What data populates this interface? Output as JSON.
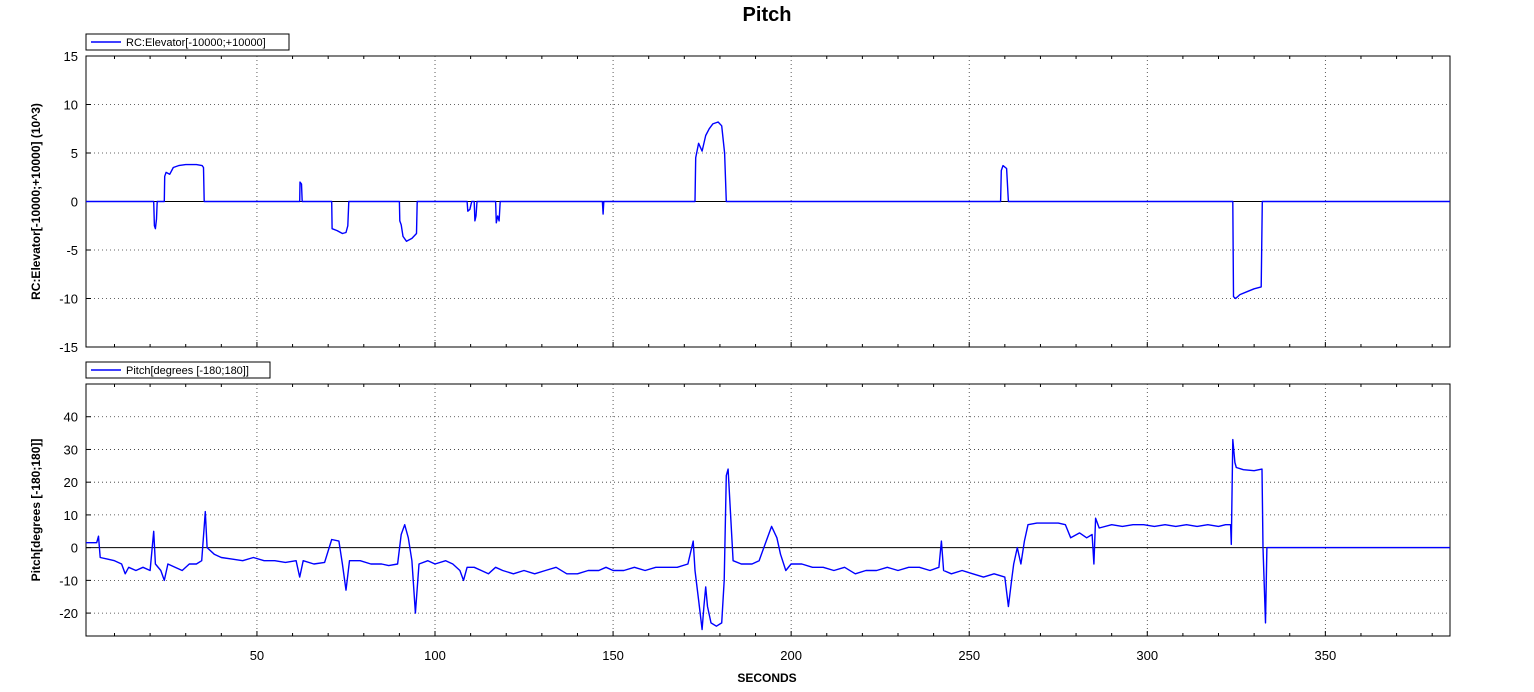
{
  "chart_data": {
    "type": "line",
    "title": "Pitch",
    "xlabel": "SECONDS",
    "xlim": [
      2,
      385
    ],
    "x_ticks": [
      50,
      100,
      150,
      200,
      250,
      300,
      350
    ],
    "panels": [
      {
        "ylabel": "RC:Elevator[-10000;+10000] (10^3)",
        "ylim": [
          -15,
          15
        ],
        "y_ticks": [
          -15,
          -10,
          -5,
          0,
          5,
          10,
          15
        ],
        "grid": true,
        "legend": "top-left",
        "series": [
          {
            "name": "RC:Elevator[-10000;+10000]",
            "color": "#0000ff",
            "points": [
              [
                2,
                0
              ],
              [
                21.0,
                0
              ],
              [
                21.2,
                -2.5
              ],
              [
                21.5,
                -2.8
              ],
              [
                21.8,
                -1.8
              ],
              [
                22.0,
                0
              ],
              [
                24.0,
                0
              ],
              [
                24.1,
                2.6
              ],
              [
                24.5,
                3.0
              ],
              [
                25.5,
                2.8
              ],
              [
                26.5,
                3.5
              ],
              [
                28,
                3.7
              ],
              [
                30,
                3.8
              ],
              [
                33,
                3.8
              ],
              [
                34.6,
                3.7
              ],
              [
                35.0,
                3.5
              ],
              [
                35.2,
                0
              ],
              [
                62.0,
                0
              ],
              [
                62.1,
                2.0
              ],
              [
                62.5,
                1.8
              ],
              [
                62.7,
                0
              ],
              [
                71.0,
                0
              ],
              [
                71.1,
                -2.8
              ],
              [
                72.5,
                -3.0
              ],
              [
                74.0,
                -3.3
              ],
              [
                75.0,
                -3.2
              ],
              [
                75.5,
                -2.5
              ],
              [
                75.8,
                0
              ],
              [
                90.0,
                0
              ],
              [
                90.1,
                -2.0
              ],
              [
                90.5,
                -2.4
              ],
              [
                91.0,
                -3.6
              ],
              [
                92.0,
                -4.1
              ],
              [
                93.5,
                -3.8
              ],
              [
                94.8,
                -3.3
              ],
              [
                95.0,
                0
              ],
              [
                109.0,
                0
              ],
              [
                109.2,
                -1.0
              ],
              [
                109.8,
                -0.8
              ],
              [
                110.3,
                0
              ],
              [
                111.0,
                0
              ],
              [
                111.2,
                -2.0
              ],
              [
                111.5,
                -1.5
              ],
              [
                111.8,
                0
              ],
              [
                117.0,
                0
              ],
              [
                117.2,
                -2.2
              ],
              [
                117.6,
                -1.5
              ],
              [
                118.0,
                -2.0
              ],
              [
                118.3,
                0
              ],
              [
                147.0,
                0
              ],
              [
                147.2,
                -1.3
              ],
              [
                147.4,
                0
              ],
              [
                173.0,
                0
              ],
              [
                173.2,
                4.5
              ],
              [
                174.0,
                6.0
              ],
              [
                175.0,
                5.2
              ],
              [
                176.0,
                6.8
              ],
              [
                177.0,
                7.5
              ],
              [
                178.0,
                8.0
              ],
              [
                179.5,
                8.2
              ],
              [
                180.5,
                7.8
              ],
              [
                181.3,
                5.0
              ],
              [
                181.8,
                0
              ],
              [
                258.8,
                0
              ],
              [
                259.0,
                3.2
              ],
              [
                259.5,
                3.7
              ],
              [
                260.5,
                3.4
              ],
              [
                261.0,
                0
              ],
              [
                324.0,
                0
              ],
              [
                324.2,
                -9.8
              ],
              [
                324.8,
                -10.0
              ],
              [
                326.0,
                -9.6
              ],
              [
                328,
                -9.3
              ],
              [
                330,
                -9.0
              ],
              [
                332,
                -8.8
              ],
              [
                332.3,
                0
              ],
              [
                385,
                0
              ]
            ]
          }
        ]
      },
      {
        "ylabel": "Pitch[degrees [-180;180]]",
        "ylim": [
          -27,
          50
        ],
        "y_ticks": [
          -20,
          -10,
          0,
          10,
          20,
          30,
          40
        ],
        "grid": true,
        "legend": "top-left",
        "series": [
          {
            "name": "Pitch[degrees [-180;180]]",
            "color": "#0000ff",
            "points": [
              [
                2,
                1.5
              ],
              [
                5,
                1.5
              ],
              [
                5.5,
                3.5
              ],
              [
                6,
                -3
              ],
              [
                8,
                -3.5
              ],
              [
                10,
                -4
              ],
              [
                12,
                -5
              ],
              [
                13,
                -8
              ],
              [
                14,
                -6
              ],
              [
                16,
                -7
              ],
              [
                18,
                -6
              ],
              [
                20,
                -7
              ],
              [
                21,
                5
              ],
              [
                21.5,
                -5
              ],
              [
                23,
                -7
              ],
              [
                24,
                -10
              ],
              [
                25,
                -5
              ],
              [
                27,
                -6
              ],
              [
                29,
                -7
              ],
              [
                31,
                -5
              ],
              [
                33,
                -5
              ],
              [
                34.5,
                -4
              ],
              [
                35.5,
                11
              ],
              [
                36,
                0
              ],
              [
                38,
                -2
              ],
              [
                40,
                -3
              ],
              [
                43,
                -3.5
              ],
              [
                46,
                -4
              ],
              [
                49,
                -3
              ],
              [
                52,
                -4
              ],
              [
                55,
                -4
              ],
              [
                58,
                -4.5
              ],
              [
                61,
                -4
              ],
              [
                62,
                -9
              ],
              [
                63,
                -4
              ],
              [
                66,
                -5
              ],
              [
                69,
                -4.5
              ],
              [
                71,
                2.5
              ],
              [
                73,
                2
              ],
              [
                74,
                -5
              ],
              [
                75,
                -13
              ],
              [
                76,
                -4
              ],
              [
                79,
                -4
              ],
              [
                82,
                -5
              ],
              [
                85,
                -5
              ],
              [
                87,
                -5.5
              ],
              [
                89.5,
                -5
              ],
              [
                90.5,
                4
              ],
              [
                91.5,
                7
              ],
              [
                92.5,
                3
              ],
              [
                93.5,
                -4
              ],
              [
                94.5,
                -20
              ],
              [
                95.5,
                -5
              ],
              [
                98,
                -4
              ],
              [
                100,
                -5
              ],
              [
                103,
                -4
              ],
              [
                105,
                -5
              ],
              [
                107,
                -7
              ],
              [
                108,
                -10
              ],
              [
                109,
                -6
              ],
              [
                111,
                -6
              ],
              [
                113,
                -7
              ],
              [
                115,
                -8
              ],
              [
                117,
                -6
              ],
              [
                119,
                -7
              ],
              [
                122,
                -8
              ],
              [
                125,
                -7
              ],
              [
                128,
                -8
              ],
              [
                131,
                -7
              ],
              [
                134,
                -6
              ],
              [
                137,
                -8
              ],
              [
                140,
                -8
              ],
              [
                143,
                -7
              ],
              [
                146,
                -7
              ],
              [
                148,
                -6
              ],
              [
                150,
                -7
              ],
              [
                153,
                -7
              ],
              [
                156,
                -6
              ],
              [
                159,
                -7
              ],
              [
                162,
                -6
              ],
              [
                165,
                -6
              ],
              [
                168,
                -6
              ],
              [
                171,
                -5
              ],
              [
                172.5,
                2
              ],
              [
                173,
                -7
              ],
              [
                174,
                -16
              ],
              [
                175,
                -25
              ],
              [
                175.5,
                -18
              ],
              [
                176,
                -12
              ],
              [
                176.5,
                -18
              ],
              [
                177.5,
                -23
              ],
              [
                179,
                -24
              ],
              [
                180.5,
                -23
              ],
              [
                181.2,
                -10
              ],
              [
                181.8,
                22
              ],
              [
                182.3,
                24
              ],
              [
                183,
                10
              ],
              [
                183.7,
                -4
              ],
              [
                186,
                -5
              ],
              [
                189,
                -5
              ],
              [
                191,
                -4
              ],
              [
                193,
                2
              ],
              [
                194.5,
                6.5
              ],
              [
                196,
                3
              ],
              [
                197,
                -2
              ],
              [
                198.5,
                -7
              ],
              [
                200,
                -5
              ],
              [
                203,
                -5
              ],
              [
                206,
                -6
              ],
              [
                209,
                -6
              ],
              [
                212,
                -7
              ],
              [
                215,
                -6
              ],
              [
                218,
                -8
              ],
              [
                221,
                -7
              ],
              [
                224,
                -7
              ],
              [
                227,
                -6
              ],
              [
                230,
                -7
              ],
              [
                233,
                -6
              ],
              [
                236,
                -6
              ],
              [
                239,
                -7
              ],
              [
                241.5,
                -6
              ],
              [
                242.2,
                2
              ],
              [
                242.8,
                -7
              ],
              [
                245,
                -8
              ],
              [
                248,
                -7
              ],
              [
                251,
                -8
              ],
              [
                254,
                -9
              ],
              [
                257,
                -8
              ],
              [
                260,
                -9
              ],
              [
                261,
                -18
              ],
              [
                262,
                -9
              ],
              [
                262.5,
                -5
              ],
              [
                263.5,
                0
              ],
              [
                264.5,
                -5
              ],
              [
                265.5,
                2
              ],
              [
                266.5,
                7
              ],
              [
                269,
                7.5
              ],
              [
                272,
                7.5
              ],
              [
                275,
                7.5
              ],
              [
                277,
                7
              ],
              [
                278.5,
                3
              ],
              [
                281,
                4.5
              ],
              [
                283,
                3
              ],
              [
                284.5,
                4
              ],
              [
                285,
                -5
              ],
              [
                285.5,
                9
              ],
              [
                286.5,
                6
              ],
              [
                290,
                7
              ],
              [
                293,
                6.5
              ],
              [
                296,
                7
              ],
              [
                299,
                7
              ],
              [
                302,
                6.5
              ],
              [
                305,
                7
              ],
              [
                308,
                6.5
              ],
              [
                311,
                7
              ],
              [
                314,
                6.5
              ],
              [
                317,
                7
              ],
              [
                320,
                6.5
              ],
              [
                322,
                7
              ],
              [
                323.4,
                7
              ],
              [
                323.6,
                1
              ],
              [
                324,
                33
              ],
              [
                324.6,
                26
              ],
              [
                325,
                24.5
              ],
              [
                327,
                23.8
              ],
              [
                330,
                23.5
              ],
              [
                332.2,
                24
              ],
              [
                332.5,
                0
              ],
              [
                333.2,
                -23
              ],
              [
                333.6,
                0
              ],
              [
                385,
                0
              ]
            ]
          }
        ]
      }
    ]
  }
}
